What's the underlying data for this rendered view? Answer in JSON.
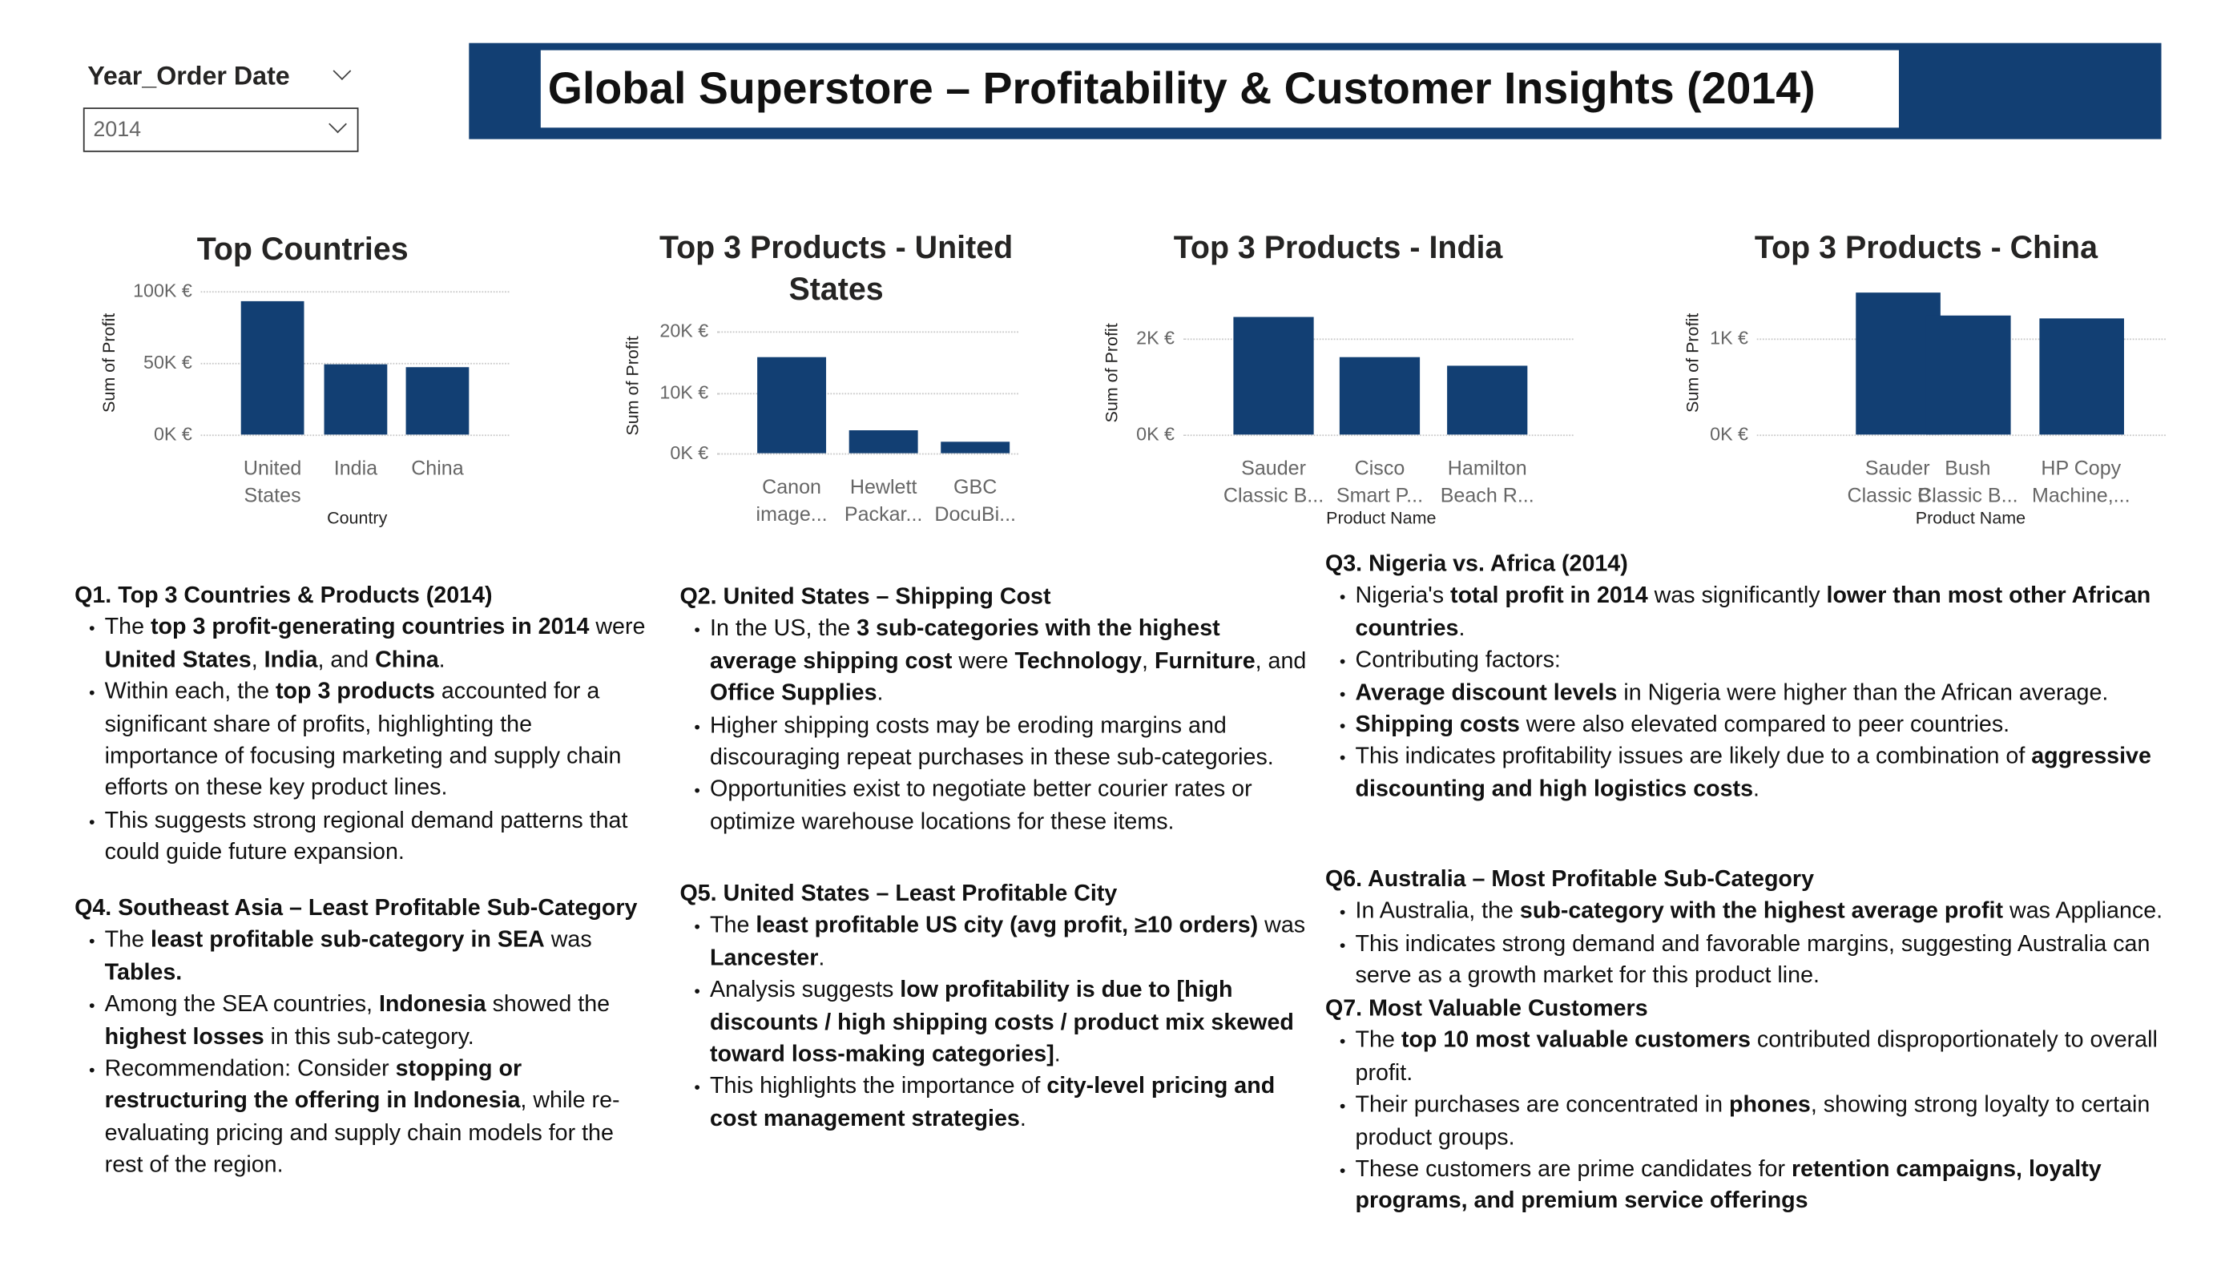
{
  "slicer": {
    "label": "Year_Order Date",
    "value": "2014"
  },
  "header": {
    "title": "Global Superstore – Profitability & Customer Insights (2014)"
  },
  "chart_data": [
    {
      "type": "bar",
      "title": "Top Countries",
      "categories": [
        "United States",
        "India",
        "China"
      ],
      "values": [
        93000,
        49000,
        47000
      ],
      "color": "#123f73",
      "ylim": [
        0,
        100000
      ],
      "yticks": [
        {
          "value": 0,
          "label": "0K €"
        },
        {
          "value": 50000,
          "label": "50K €"
        },
        {
          "value": 100000,
          "label": "100K €"
        }
      ],
      "x_label": "Country",
      "y_label": "Sum of Profit",
      "grid": true
    },
    {
      "type": "bar",
      "title": "Top 3 Products - United States",
      "categories": [
        "Canon image...",
        "Hewlett Packar...",
        "GBC DocuBi..."
      ],
      "values": [
        15800,
        3800,
        1900
      ],
      "color": "#123f73",
      "ylim": [
        0,
        22000
      ],
      "yticks": [
        {
          "value": 0,
          "label": "0K €"
        },
        {
          "value": 10000,
          "label": "10K €"
        },
        {
          "value": 20000,
          "label": "20K €"
        }
      ],
      "y_label": "Sum of Profit",
      "grid": true
    },
    {
      "type": "bar",
      "title": "Top 3 Products - India",
      "categories": [
        "Sauder Classic B...",
        "Cisco Smart P...",
        "Hamilton Beach R..."
      ],
      "values": [
        2450,
        1610,
        1430
      ],
      "color": "#123f73",
      "ylim": [
        0,
        2600
      ],
      "yticks": [
        {
          "value": 0,
          "label": "0K €"
        },
        {
          "value": 2000,
          "label": "2K €"
        }
      ],
      "x_label": "Product Name",
      "y_label": "Sum of Profit",
      "grid": true
    },
    {
      "type": "bar",
      "title": "Top 3 Products - China",
      "categories": [
        "Sauder Classic B...",
        "Bush Classic B...",
        "HP Copy Machine,..."
      ],
      "values": [
        1480,
        1240,
        1210
      ],
      "color": "#123f73",
      "ylim": [
        0,
        1500
      ],
      "yticks": [
        {
          "value": 0,
          "label": "0K €"
        },
        {
          "value": 1000,
          "label": "1K €"
        }
      ],
      "x_label": "Product Name",
      "y_label": "Sum of Profit",
      "grid": true
    }
  ],
  "notes": [
    {
      "heading": "Q1. Top 3 Countries & Products (2014)",
      "bullets": [
        [
          "The ",
          {
            "b": "top 3 profit-generating countries in 2014"
          },
          " were ",
          {
            "b": "United States"
          },
          ", ",
          {
            "b": "India"
          },
          ", and ",
          {
            "b": "China"
          },
          "."
        ],
        [
          "Within each, the ",
          {
            "b": "top 3 products"
          },
          " accounted for a significant share of profits, highlighting the importance of focusing marketing and supply chain efforts on these key product lines."
        ],
        [
          "This suggests strong regional demand patterns that could guide future expansion."
        ]
      ]
    },
    {
      "heading": "Q4. Southeast Asia – Least Profitable Sub-Category",
      "bullets": [
        [
          "The ",
          {
            "b": "least profitable sub-category in SEA"
          },
          " was ",
          {
            "b": "Tables."
          }
        ],
        [
          "Among the SEA countries, ",
          {
            "b": "Indonesia"
          },
          " showed the ",
          {
            "b": "highest losses"
          },
          " in this sub-category."
        ],
        [
          "Recommendation: Consider ",
          {
            "b": "stopping or restructuring the offering in Indonesia"
          },
          ", while re-evaluating pricing and supply chain models for the rest of the region."
        ]
      ]
    },
    {
      "heading": "Q2. United States – Shipping Cost",
      "bullets": [
        [
          "In the US, the ",
          {
            "b": "3 sub-categories with the highest average shipping cost"
          },
          " were ",
          {
            "b": "Technology"
          },
          ", ",
          {
            "b": "Furniture"
          },
          ", and ",
          {
            "b": "Office Supplies"
          },
          "."
        ],
        [
          "Higher shipping costs may be eroding margins and discouraging repeat purchases in these sub-categories."
        ],
        [
          "Opportunities exist to negotiate better courier rates or optimize warehouse locations for these items."
        ]
      ]
    },
    {
      "heading": "Q5. United States – Least Profitable City",
      "bullets": [
        [
          "The ",
          {
            "b": "least profitable US city (avg profit, ≥10 orders)"
          },
          " was ",
          {
            "b": "Lancester"
          },
          "."
        ],
        [
          "Analysis suggests ",
          {
            "b": "low profitability is due to [high discounts / high shipping costs / product mix skewed toward loss-making categories]"
          },
          "."
        ],
        [
          "This highlights the importance of ",
          {
            "b": "city-level pricing and cost management strategies"
          },
          "."
        ]
      ]
    },
    {
      "heading": "Q3. Nigeria vs. Africa (2014)",
      "bullets": [
        [
          "Nigeria's ",
          {
            "b": "total profit in 2014"
          },
          " was significantly ",
          {
            "b": "lower than most other African countries"
          },
          "."
        ],
        [
          "Contributing factors:"
        ],
        [
          {
            "b": "Average discount levels"
          },
          " in Nigeria were higher than the African average."
        ],
        [
          {
            "b": "Shipping costs"
          },
          " were also elevated compared to peer countries."
        ],
        [
          "This indicates profitability issues are likely due to a combination of ",
          {
            "b": "aggressive discounting and high logistics costs"
          },
          "."
        ]
      ]
    },
    {
      "heading": "Q6. Australia – Most Profitable Sub-Category",
      "bullets": [
        [
          "In Australia, the ",
          {
            "b": "sub-category with the highest average profit"
          },
          " was Appliance."
        ],
        [
          "This indicates strong demand and favorable margins, suggesting Australia can serve as a growth market for this product line."
        ]
      ]
    },
    {
      "heading": "Q7. Most Valuable Customers",
      "bullets": [
        [
          "The ",
          {
            "b": "top 10 most valuable customers"
          },
          " contributed disproportionately to overall profit."
        ],
        [
          "Their purchases are concentrated in ",
          {
            "b": "phones"
          },
          ", showing strong loyalty to certain product groups."
        ],
        [
          "These customers are prime candidates for ",
          {
            "b": "retention campaigns, loyalty programs, and premium service offerings"
          }
        ]
      ]
    }
  ]
}
